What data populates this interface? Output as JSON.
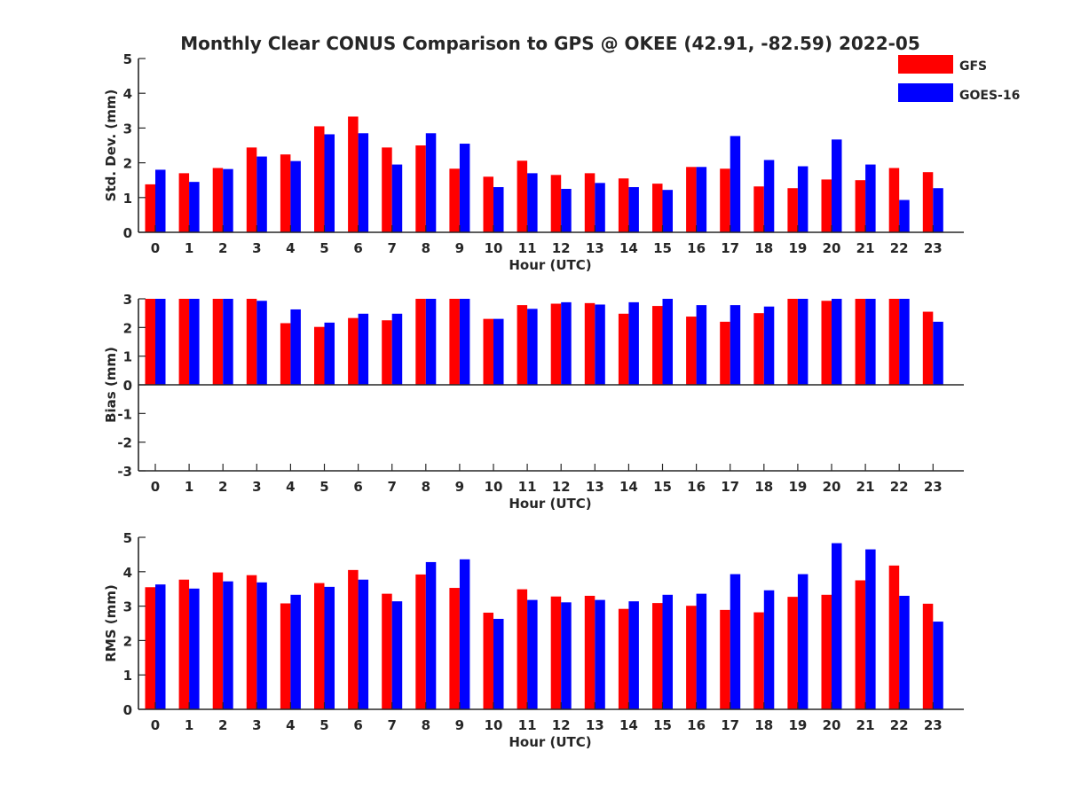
{
  "title": "Monthly Clear CONUS Comparison to GPS @ OKEE (42.91, -82.59) 2022-05",
  "legend": {
    "placement": "top-right",
    "items": [
      {
        "label": "GFS",
        "color": "#ff0000"
      },
      {
        "label": "GOES-16",
        "color": "#0000ff"
      }
    ]
  },
  "chart_data": [
    {
      "type": "bar",
      "xlabel": "Hour (UTC)",
      "ylabel": "Std. Dev. (mm)",
      "ylim": [
        0,
        5
      ],
      "yticks": [
        0,
        1,
        2,
        3,
        4,
        5
      ],
      "categories": [
        "0",
        "1",
        "2",
        "3",
        "4",
        "5",
        "6",
        "7",
        "8",
        "9",
        "10",
        "11",
        "12",
        "13",
        "14",
        "15",
        "16",
        "17",
        "18",
        "19",
        "20",
        "21",
        "22",
        "23"
      ],
      "series": [
        {
          "name": "GFS",
          "color": "#ff0000",
          "values": [
            1.38,
            1.7,
            1.85,
            2.44,
            2.24,
            3.05,
            3.33,
            2.44,
            2.5,
            1.83,
            1.6,
            2.06,
            1.65,
            1.7,
            1.55,
            1.4,
            1.88,
            1.83,
            1.32,
            1.27,
            1.52,
            1.5,
            1.85,
            1.73
          ]
        },
        {
          "name": "GOES-16",
          "color": "#0000ff",
          "values": [
            1.8,
            1.45,
            1.82,
            2.18,
            2.05,
            2.82,
            2.85,
            1.95,
            2.85,
            2.55,
            1.3,
            1.7,
            1.25,
            1.42,
            1.3,
            1.22,
            1.88,
            2.77,
            2.08,
            1.9,
            2.67,
            1.95,
            0.93,
            1.27
          ]
        }
      ]
    },
    {
      "type": "bar",
      "xlabel": "Hour (UTC)",
      "ylabel": "Bias (mm)",
      "ylim": [
        -3,
        3
      ],
      "yticks": [
        -3,
        -2,
        -1,
        0,
        1,
        2,
        3
      ],
      "categories": [
        "0",
        "1",
        "2",
        "3",
        "4",
        "5",
        "6",
        "7",
        "8",
        "9",
        "10",
        "11",
        "12",
        "13",
        "14",
        "15",
        "16",
        "17",
        "18",
        "19",
        "20",
        "21",
        "22",
        "23"
      ],
      "series": [
        {
          "name": "GFS",
          "color": "#ff0000",
          "values": [
            3.0,
            3.0,
            3.0,
            3.0,
            2.15,
            2.02,
            2.33,
            2.25,
            3.0,
            3.0,
            2.3,
            2.78,
            2.83,
            2.85,
            2.48,
            2.75,
            2.38,
            2.2,
            2.5,
            3.0,
            2.93,
            3.0,
            3.0,
            2.55
          ]
        },
        {
          "name": "GOES-16",
          "color": "#0000ff",
          "values": [
            3.0,
            3.0,
            3.0,
            2.93,
            2.63,
            2.17,
            2.48,
            2.48,
            3.0,
            3.0,
            2.3,
            2.65,
            2.88,
            2.8,
            2.88,
            3.0,
            2.78,
            2.78,
            2.73,
            3.0,
            3.0,
            3.0,
            3.0,
            2.2
          ]
        }
      ]
    },
    {
      "type": "bar",
      "xlabel": "Hour (UTC)",
      "ylabel": "RMS (mm)",
      "ylim": [
        0,
        5
      ],
      "yticks": [
        0,
        1,
        2,
        3,
        4,
        5
      ],
      "categories": [
        "0",
        "1",
        "2",
        "3",
        "4",
        "5",
        "6",
        "7",
        "8",
        "9",
        "10",
        "11",
        "12",
        "13",
        "14",
        "15",
        "16",
        "17",
        "18",
        "19",
        "20",
        "21",
        "22",
        "23"
      ],
      "series": [
        {
          "name": "GFS",
          "color": "#ff0000",
          "values": [
            3.55,
            3.77,
            3.98,
            3.9,
            3.08,
            3.67,
            4.05,
            3.36,
            3.92,
            3.53,
            2.81,
            3.49,
            3.28,
            3.3,
            2.92,
            3.09,
            3.01,
            2.89,
            2.82,
            3.27,
            3.33,
            3.75,
            4.18,
            3.07
          ]
        },
        {
          "name": "GOES-16",
          "color": "#0000ff",
          "values": [
            3.63,
            3.51,
            3.72,
            3.69,
            3.33,
            3.56,
            3.77,
            3.14,
            4.28,
            4.36,
            2.63,
            3.18,
            3.11,
            3.18,
            3.14,
            3.33,
            3.36,
            3.93,
            3.46,
            3.93,
            4.83,
            4.65,
            3.3,
            2.55
          ]
        }
      ]
    }
  ]
}
